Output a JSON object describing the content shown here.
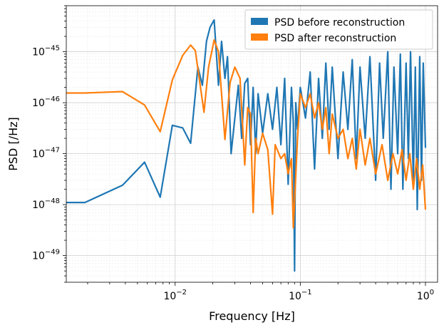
{
  "chart_data": {
    "type": "line",
    "title": "",
    "xlabel": "Frequency [Hz]",
    "ylabel": "PSD [/Hz]",
    "xscale": "log",
    "yscale": "log",
    "xlim": [
      0.00135,
      1.25
    ],
    "ylim": [
      3e-50,
      8e-45
    ],
    "grid": true,
    "legend_position": "upper right",
    "x_ticks": [
      {
        "value": 0.01,
        "base": "10",
        "exp": "−2"
      },
      {
        "value": 0.1,
        "base": "10",
        "exp": "−1"
      },
      {
        "value": 1,
        "base": "10",
        "exp": "0"
      }
    ],
    "y_ticks": [
      {
        "value": 1e-49,
        "base": "10",
        "exp": "−49"
      },
      {
        "value": 1e-48,
        "base": "10",
        "exp": "−48"
      },
      {
        "value": 1e-47,
        "base": "10",
        "exp": "−47"
      },
      {
        "value": 1e-46,
        "base": "10",
        "exp": "−46"
      },
      {
        "value": 1e-45,
        "base": "10",
        "exp": "−45"
      }
    ],
    "series": [
      {
        "name": "PSD before reconstruction",
        "color": "#1f77b4",
        "x": [
          0.00135,
          0.0019,
          0.0038,
          0.0057,
          0.0076,
          0.0095,
          0.0115,
          0.0133,
          0.0152,
          0.0165,
          0.0178,
          0.019,
          0.0205,
          0.0222,
          0.0235,
          0.025,
          0.0262,
          0.028,
          0.03,
          0.032,
          0.034,
          0.036,
          0.038,
          0.04,
          0.042,
          0.044,
          0.046,
          0.05,
          0.055,
          0.06,
          0.065,
          0.07,
          0.075,
          0.08,
          0.085,
          0.088,
          0.09,
          0.092,
          0.095,
          0.1,
          0.11,
          0.12,
          0.13,
          0.14,
          0.15,
          0.16,
          0.17,
          0.18,
          0.2,
          0.22,
          0.24,
          0.26,
          0.28,
          0.3,
          0.33,
          0.36,
          0.4,
          0.43,
          0.46,
          0.5,
          0.53,
          0.56,
          0.6,
          0.63,
          0.66,
          0.7,
          0.73,
          0.76,
          0.8,
          0.83,
          0.86,
          0.9,
          0.93,
          0.96,
          1.0
        ],
        "y": [
          1.1e-48,
          1.1e-48,
          2.4e-48,
          6.8e-48,
          1.4e-48,
          3.6e-47,
          3.2e-47,
          1.6e-47,
          5e-46,
          2.2e-46,
          1.6e-45,
          3e-45,
          4.2e-45,
          2.2e-46,
          1.6e-45,
          3e-46,
          8e-46,
          1e-47,
          5e-47,
          2.2e-46,
          2e-47,
          2.4e-46,
          3e-46,
          1.5e-47,
          2e-46,
          1e-47,
          1.5e-46,
          2.5e-47,
          1.5e-46,
          3e-47,
          2e-46,
          1.5e-47,
          3e-46,
          2.5e-48,
          2e-46,
          4e-47,
          5e-50,
          1e-46,
          3e-47,
          2e-46,
          5e-47,
          4e-46,
          5e-48,
          3e-46,
          2e-47,
          6e-46,
          3e-47,
          5e-46,
          8e-48,
          4e-46,
          3e-47,
          7e-46,
          8e-48,
          5e-46,
          2e-47,
          8e-46,
          3e-48,
          6e-46,
          2e-47,
          1e-45,
          2e-48,
          5e-46,
          1e-47,
          9e-46,
          2e-48,
          6e-46,
          8e-48,
          1e-45,
          3e-48,
          5e-46,
          8e-49,
          8e-46,
          3e-48,
          6e-46,
          1.3e-47
        ]
      },
      {
        "name": "PSD after reconstruction",
        "color": "#ff7f0e",
        "x": [
          0.00135,
          0.0019,
          0.0038,
          0.0057,
          0.0076,
          0.0095,
          0.0115,
          0.0133,
          0.0145,
          0.017,
          0.0185,
          0.0205,
          0.0222,
          0.025,
          0.0275,
          0.03,
          0.033,
          0.036,
          0.038,
          0.04,
          0.042,
          0.044,
          0.046,
          0.05,
          0.055,
          0.06,
          0.063,
          0.07,
          0.075,
          0.08,
          0.085,
          0.088,
          0.095,
          0.1,
          0.11,
          0.12,
          0.13,
          0.14,
          0.15,
          0.16,
          0.17,
          0.18,
          0.2,
          0.22,
          0.24,
          0.26,
          0.28,
          0.3,
          0.33,
          0.36,
          0.4,
          0.45,
          0.5,
          0.55,
          0.6,
          0.65,
          0.7,
          0.75,
          0.8,
          0.85,
          0.9,
          0.95,
          1.0
        ],
        "y": [
          1.55e-46,
          1.55e-46,
          1.65e-46,
          9e-47,
          2.7e-47,
          2.8e-46,
          8.5e-46,
          1.35e-45,
          1.05e-45,
          6.5e-47,
          5e-46,
          1.7e-45,
          1e-45,
          1.9e-47,
          2.5e-46,
          5e-46,
          3e-46,
          6e-48,
          8e-47,
          6e-47,
          7e-49,
          2e-47,
          1e-47,
          2.5e-47,
          1.2e-47,
          6.5e-49,
          1.5e-47,
          8e-48,
          1e-47,
          4e-48,
          8e-48,
          3.5e-49,
          2e-47,
          1.5e-46,
          8e-47,
          1.5e-46,
          5e-47,
          1e-46,
          3e-47,
          8e-47,
          1e-47,
          6e-47,
          2e-47,
          3e-47,
          8e-48,
          2e-47,
          5e-48,
          3e-47,
          6e-48,
          2e-47,
          4e-48,
          1.5e-47,
          3e-48,
          1e-47,
          4e-48,
          1.2e-47,
          3e-48,
          1e-47,
          2e-48,
          8e-48,
          2e-48,
          6e-48,
          8e-49
        ]
      }
    ]
  }
}
